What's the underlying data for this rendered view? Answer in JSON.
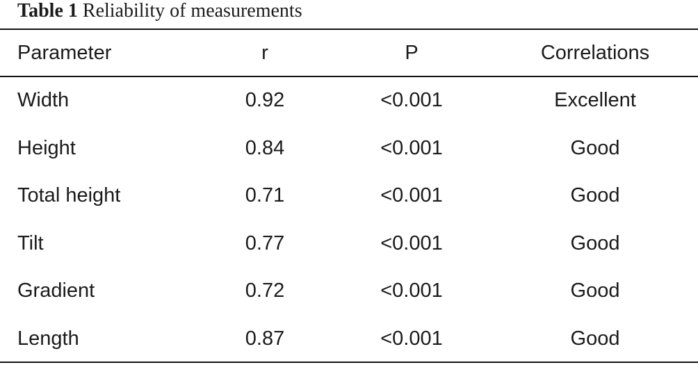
{
  "caption": {
    "label": "Table 1",
    "title": "Reliability of measurements"
  },
  "table": {
    "headers": [
      "Parameter",
      "r",
      "P",
      "Correlations"
    ],
    "rows": [
      [
        "Width",
        "0.92",
        "<0.001",
        "Excellent"
      ],
      [
        "Height",
        "0.84",
        "<0.001",
        "Good"
      ],
      [
        "Total height",
        "0.71",
        "<0.001",
        "Good"
      ],
      [
        "Tilt",
        "0.77",
        "<0.001",
        "Good"
      ],
      [
        "Gradient",
        "0.72",
        "<0.001",
        "Good"
      ],
      [
        "Length",
        "0.87",
        "<0.001",
        "Good"
      ]
    ]
  }
}
